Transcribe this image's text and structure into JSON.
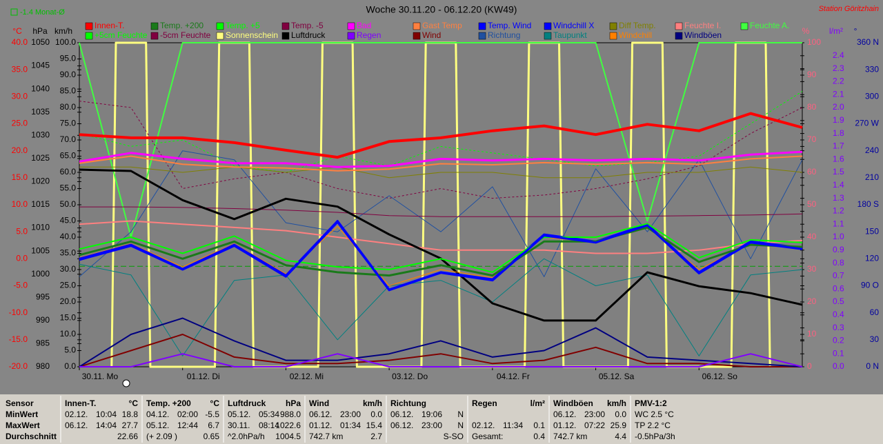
{
  "chart_data": {
    "type": "line",
    "title": "Woche 30.11.20 - 06.12.20 (KW49)",
    "station": "Station Göritzhain",
    "monthly_mean": {
      "label": "-1.4 Monat-Ø",
      "value": -1.4,
      "color": "#00a000"
    },
    "xlim": [
      0,
      168
    ],
    "xticks": [
      {
        "value": 0,
        "label": "30.11. Mo"
      },
      {
        "value": 24,
        "label": "01.12. Di"
      },
      {
        "value": 48,
        "label": "02.12. Mi"
      },
      {
        "value": 72,
        "label": "03.12. Do"
      },
      {
        "value": 96,
        "label": "04.12. Fr"
      },
      {
        "value": 120,
        "label": "05.12. Sa"
      },
      {
        "value": 144,
        "label": "06.12. So"
      }
    ],
    "x": [
      0,
      12,
      24,
      36,
      48,
      60,
      72,
      84,
      96,
      108,
      120,
      132,
      144,
      156,
      168
    ],
    "axes": [
      {
        "label": "°C",
        "color": "#ff0000",
        "lim": [
          -20,
          40
        ],
        "ticks": [
          {
            "value": -20,
            "label": "-20.0"
          },
          {
            "value": -15,
            "label": "-15.0"
          },
          {
            "value": -10,
            "label": "-10.0"
          },
          {
            "value": -5,
            "label": "-5.0"
          },
          {
            "value": 0,
            "label": "0.0"
          },
          {
            "value": 5,
            "label": "5.0"
          },
          {
            "value": 10,
            "label": "10.0"
          },
          {
            "value": 15,
            "label": "15.0"
          },
          {
            "value": 20,
            "label": "20.0"
          },
          {
            "value": 25,
            "label": "25.0"
          },
          {
            "value": 30,
            "label": "30.0"
          },
          {
            "value": 35,
            "label": "35.0"
          },
          {
            "value": 40,
            "label": "40.0"
          }
        ]
      },
      {
        "label": "hPa",
        "color": "#000000",
        "lim": [
          980,
          1050
        ],
        "ticks": [
          980,
          985,
          990,
          995,
          1000,
          1005,
          1010,
          1015,
          1020,
          1025,
          1030,
          1035,
          1040,
          1045,
          1050
        ]
      },
      {
        "label": "km/h",
        "color": "#000000",
        "lim": [
          0,
          100
        ],
        "ticks": [
          {
            "value": 0,
            "label": "0.0"
          },
          {
            "value": 5,
            "label": "5.0"
          },
          {
            "value": 10,
            "label": "10.0"
          },
          {
            "value": 15,
            "label": "15.0"
          },
          {
            "value": 20,
            "label": "20.0"
          },
          {
            "value": 25,
            "label": "25.0"
          },
          {
            "value": 30,
            "label": "30.0"
          },
          {
            "value": 35,
            "label": "35.0"
          },
          {
            "value": 40,
            "label": "40.0"
          },
          {
            "value": 45,
            "label": "45.0"
          },
          {
            "value": 50,
            "label": "50.0"
          },
          {
            "value": 55,
            "label": "55.0"
          },
          {
            "value": 60,
            "label": "60.0"
          },
          {
            "value": 65,
            "label": "65.0"
          },
          {
            "value": 70,
            "label": "70.0"
          },
          {
            "value": 75,
            "label": "75.0"
          },
          {
            "value": 80,
            "label": "80.0"
          },
          {
            "value": 85,
            "label": "85.0"
          },
          {
            "value": 90,
            "label": "90.0"
          },
          {
            "value": 95,
            "label": "95.0"
          },
          {
            "value": 100,
            "label": "100.0"
          }
        ]
      },
      {
        "label": "%",
        "color": "#ff6080",
        "lim": [
          0,
          100
        ],
        "ticks": [
          0,
          10,
          20,
          30,
          40,
          50,
          60,
          70,
          80,
          90,
          100
        ]
      },
      {
        "label": "l/m²",
        "color": "#8000ff",
        "lim": [
          0,
          2.5
        ],
        "ticks": [
          {
            "value": 0,
            "label": "0.0"
          },
          0.1,
          0.2,
          0.3,
          0.4,
          0.5,
          0.6,
          0.7,
          0.8,
          0.9,
          {
            "value": 1,
            "label": "1.0"
          },
          1.1,
          1.2,
          1.3,
          1.4,
          1.5,
          1.6,
          1.7,
          1.8,
          1.9,
          {
            "value": 2,
            "label": "2.0"
          },
          2.1,
          2.2,
          2.3,
          2.4
        ]
      },
      {
        "label": "°",
        "color": "#0000a0",
        "lim": [
          0,
          360
        ],
        "ticks": [
          {
            "value": 0,
            "label": "0 N"
          },
          30,
          60,
          {
            "value": 90,
            "label": "90 O"
          },
          120,
          150,
          {
            "value": 180,
            "label": "180 S"
          },
          210,
          240,
          {
            "value": 270,
            "label": "270 W"
          },
          300,
          330,
          {
            "value": 360,
            "label": "360 N"
          }
        ]
      }
    ],
    "series": [
      {
        "name": "Innen-T.",
        "color": "#ff0000",
        "axis": 0,
        "values": [
          23,
          22.4,
          22.4,
          21.5,
          20.1,
          18.8,
          21.7,
          22.4,
          23.7,
          24.6,
          23,
          24.9,
          23.7,
          26.9,
          24.3
        ]
      },
      {
        "name": "Temp. +200",
        "color": "#1a7a1a",
        "axis": 0,
        "values": [
          0.7,
          3.2,
          0,
          3.2,
          -1.2,
          -2.5,
          -3.1,
          -1.2,
          -3.1,
          3.2,
          3.2,
          5.8,
          -0.6,
          2.6,
          2.2
        ]
      },
      {
        "name": "Temp. +5",
        "color": "#00ff00",
        "axis": 0,
        "values": [
          1.8,
          4,
          1,
          4.2,
          -0.3,
          -1.5,
          -2,
          0,
          -2.5,
          4,
          4,
          6.5,
          0.2,
          3.5,
          3
        ]
      },
      {
        "name": "Temp. -5",
        "color": "#800040",
        "axis": 0,
        "values": [
          9.6,
          9.6,
          9.5,
          9.3,
          9,
          8.6,
          8,
          7.8,
          7.8,
          7.8,
          7.8,
          7.9,
          8,
          8.1,
          8.3
        ]
      },
      {
        "name": "Bad",
        "color": "#ff00ff",
        "axis": 0,
        "values": [
          18,
          19.6,
          18.5,
          17.7,
          17.7,
          17,
          17.2,
          18.5,
          18.2,
          18.5,
          18.2,
          18.5,
          18.2,
          19.3,
          19.8
        ]
      },
      {
        "name": "Gast Temp",
        "color": "#ff8040",
        "axis": 0,
        "values": [
          17.7,
          19,
          17.5,
          17,
          16.8,
          16.3,
          16.6,
          17.6,
          17.4,
          17.8,
          17.5,
          17.8,
          17.5,
          18.5,
          19
        ]
      },
      {
        "name": "Temp. Wind",
        "color": "#0000ff",
        "axis": 0,
        "values": [
          0,
          2.6,
          -1.9,
          2.6,
          -3.1,
          7,
          -5.7,
          -2.5,
          -3.8,
          4.5,
          3.2,
          6.4,
          -2.5,
          3.2,
          2
        ]
      },
      {
        "name": "Windchill X",
        "color": "#0000ff",
        "axis": 0,
        "values": [
          -0.2,
          2.4,
          -2,
          2.4,
          -3.3,
          6.8,
          -5.8,
          -2.6,
          -4,
          4.3,
          3,
          6.2,
          -2.7,
          3,
          1.8
        ]
      },
      {
        "name": "Diff Temp.",
        "color": "#808000",
        "axis": 0,
        "values": [
          17,
          17,
          16,
          17,
          16,
          17,
          15,
          16,
          16,
          15,
          15,
          16,
          16,
          17,
          16
        ]
      },
      {
        "name": "Feuchte I.",
        "color": "#ff8080",
        "axis": 3,
        "values": [
          44,
          45,
          44,
          43,
          42,
          40,
          38,
          36,
          36,
          36,
          35,
          35,
          36,
          38,
          39
        ]
      },
      {
        "name": "Feuchte A.",
        "color": "#40ff40",
        "axis": 3,
        "values": [
          100,
          40,
          100,
          100,
          100,
          100,
          100,
          100,
          100,
          100,
          100,
          45,
          100,
          100,
          100
        ]
      },
      {
        "name": "+5cm Feuchte",
        "color": "#00ff00",
        "axis": 3,
        "dashed": true,
        "values": [
          72,
          68,
          70,
          62,
          60,
          65,
          62,
          68,
          66,
          64,
          62,
          63,
          65,
          75,
          85
        ]
      },
      {
        "name": "-5cm Feuchte",
        "color": "#800040",
        "axis": 3,
        "dashed": true,
        "values": [
          82,
          80,
          55,
          58,
          60,
          55,
          52,
          55,
          52,
          53,
          55,
          58,
          62,
          72,
          80
        ]
      },
      {
        "name": "Sonnenschein",
        "color": "#ffff80",
        "axis": 3,
        "x": [
          7.5,
          8.5,
          15.5,
          16.5,
          31.5,
          32.5,
          39.5,
          40.5,
          55.5,
          56.5,
          63.5,
          64.5,
          79.5,
          80.5,
          87.5,
          88.5,
          103.5,
          104.5,
          111.5,
          112.5,
          127.5,
          128.5,
          135.5,
          136.5,
          151.5,
          152.5,
          159.5,
          160.5
        ],
        "values": [
          0,
          100,
          100,
          0,
          0,
          100,
          100,
          0,
          0,
          100,
          100,
          0,
          0,
          100,
          100,
          0,
          0,
          100,
          100,
          0,
          0,
          100,
          100,
          0,
          0,
          100,
          100,
          0
        ]
      },
      {
        "name": "Luftdruck",
        "color": "#000000",
        "axis": 1,
        "values": [
          1022.6,
          1022.3,
          1016,
          1011.9,
          1016.3,
          1014.6,
          1008.6,
          1003.4,
          993.7,
          990,
          990,
          1000.4,
          997.4,
          995.9,
          993.4
        ]
      },
      {
        "name": "Regen",
        "color": "#8000ff",
        "axis": 4,
        "values": [
          0,
          0,
          0.1,
          0,
          0,
          0.1,
          0,
          0,
          0,
          0,
          0,
          0,
          0,
          0.1,
          0
        ]
      },
      {
        "name": "Wind",
        "color": "#800000",
        "axis": 2,
        "values": [
          0,
          5,
          10,
          3,
          1,
          1,
          2,
          4,
          1,
          2,
          6,
          1,
          1,
          0,
          0
        ]
      },
      {
        "name": "Richtung",
        "color": "#2050a0",
        "axis": 5,
        "values": [
          100,
          150,
          240,
          230,
          160,
          150,
          190,
          150,
          200,
          100,
          220,
          150,
          230,
          120,
          230
        ]
      },
      {
        "name": "Taupunkt",
        "color": "#008080",
        "axis": 0,
        "values": [
          -1,
          -3,
          -18,
          -4,
          -3,
          -15,
          -5,
          -4,
          -8,
          0,
          -5,
          -3,
          -18,
          -3,
          -2
        ]
      },
      {
        "name": "Windchill",
        "color": "#ff8000",
        "axis": 0,
        "values": [
          0.2,
          2.8,
          -1.5,
          2.8,
          -2.8,
          6,
          -5,
          -2,
          -3.5,
          4,
          3,
          6,
          -2,
          3,
          2
        ]
      },
      {
        "name": "Windböen",
        "color": "#000080",
        "axis": 2,
        "values": [
          0,
          10,
          15,
          8,
          2,
          2,
          4,
          8,
          3,
          5,
          12,
          3,
          2,
          1,
          0
        ]
      }
    ]
  },
  "table": {
    "row_labels": [
      "Sensor",
      "MinWert",
      "MaxWert",
      "Durchschnitt"
    ],
    "groups": [
      {
        "name": "Innen-T.",
        "unit": "°C",
        "rows": [
          [
            "02.12.",
            "10:04",
            "18.8"
          ],
          [
            "06.12.",
            "14:04",
            "27.7"
          ],
          [
            "22.66"
          ]
        ]
      },
      {
        "name": "Temp. +200",
        "unit": "°C",
        "rows": [
          [
            "04.12.",
            "02:00",
            "-5.5"
          ],
          [
            "05.12.",
            "12:44",
            "6.7"
          ],
          [
            "(+ 2.09 )",
            "0.65"
          ]
        ]
      },
      {
        "name": "Luftdruck",
        "unit": "hPa",
        "rows": [
          [
            "05.12.",
            "05:34",
            "988.0"
          ],
          [
            "30.11.",
            "08:14",
            "1022.6"
          ],
          [
            "^2.0hPa/h",
            "1004.5"
          ]
        ]
      },
      {
        "name": "Wind",
        "unit": "km/h",
        "rows": [
          [
            "06.12.",
            "23:00",
            "0.0"
          ],
          [
            "01.12.",
            "01:34",
            "15.4"
          ],
          [
            "742.7 km",
            "2.7"
          ]
        ]
      },
      {
        "name": "Richtung",
        "rows": [
          [
            "06.12.",
            "19:06",
            "N"
          ],
          [
            "06.12.",
            "23:00",
            "N"
          ],
          [
            "S-SO"
          ]
        ]
      },
      {
        "name": "Regen",
        "unit": "l/m²",
        "rows": [
          [],
          [
            "02.12.",
            "11:34",
            "0.1"
          ],
          [
            "Gesamt:",
            "0.4"
          ]
        ]
      },
      {
        "name": "Windböen",
        "unit": "km/h",
        "rows": [
          [
            "06.12.",
            "23:00",
            "0.0"
          ],
          [
            "01.12.",
            "07:22",
            "25.9"
          ],
          [
            "742.7 km",
            "4.4"
          ]
        ]
      },
      {
        "name": "PMV-1:2",
        "rows": [
          [
            "WC 2.5 °C"
          ],
          [
            "TP 2.2 °C"
          ],
          [
            "-0.5hPa/3h"
          ]
        ]
      }
    ]
  }
}
